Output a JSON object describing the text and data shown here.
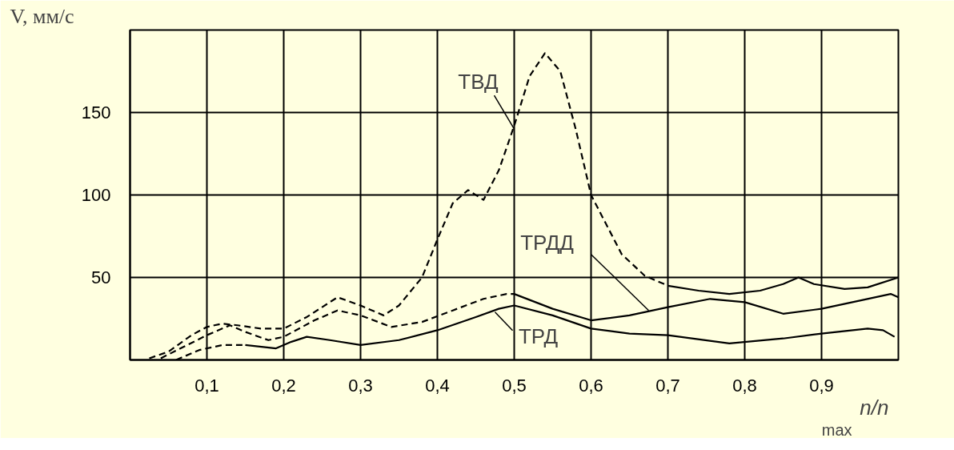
{
  "chart_data": {
    "type": "line",
    "xlabel": "n/n$_{max}$",
    "ylabel": "V, мм/с",
    "xlim": [
      0,
      1
    ],
    "ylim": [
      0,
      200
    ],
    "xticks": [
      {
        "value": 0.1,
        "label": "0,1"
      },
      {
        "value": 0.2,
        "label": "0,2"
      },
      {
        "value": 0.3,
        "label": "0,3"
      },
      {
        "value": 0.4,
        "label": "0,4"
      },
      {
        "value": 0.5,
        "label": "0,5"
      },
      {
        "value": 0.6,
        "label": "0,6"
      },
      {
        "value": 0.7,
        "label": "0,7"
      },
      {
        "value": 0.8,
        "label": "0,8"
      },
      {
        "value": 0.9,
        "label": "0,9"
      }
    ],
    "yticks": [
      50,
      100,
      150
    ],
    "grid": true,
    "marker": "none",
    "series": [
      {
        "color": "#000000",
        "line_style": "dashed",
        "x": [
          0.025,
          0.05,
          0.08,
          0.1,
          0.12,
          0.14,
          0.17,
          0.2,
          0.23,
          0.27,
          0.3,
          0.33,
          0.35,
          0.38,
          0.4,
          0.42,
          0.44,
          0.46,
          0.48,
          0.5,
          0.52,
          0.54,
          0.56,
          0.58,
          0.6,
          0.64,
          0.67,
          0.7
        ],
        "values": [
          1,
          5,
          15,
          20,
          22,
          21,
          19,
          19,
          26,
          38,
          33,
          27,
          33,
          50,
          73,
          95,
          103,
          97,
          115,
          142,
          172,
          186,
          175,
          140,
          100,
          64,
          51,
          45
        ]
      },
      {
        "color": "#000000",
        "line_style": "solid",
        "x": [
          0.7,
          0.74,
          0.78,
          0.82,
          0.85,
          0.87,
          0.89,
          0.93,
          0.96,
          1.0
        ],
        "values": [
          45,
          42,
          40,
          42,
          46,
          50,
          46,
          43,
          44,
          50
        ]
      },
      {
        "color": "#000000",
        "line_style": "dashed",
        "x": [
          0.04,
          0.07,
          0.1,
          0.13,
          0.15,
          0.18,
          0.2,
          0.24,
          0.27,
          0.3,
          0.34,
          0.38,
          0.42,
          0.46,
          0.49,
          0.5
        ],
        "values": [
          1,
          8,
          15,
          21,
          17,
          12,
          14,
          24,
          30,
          27,
          20,
          23,
          30,
          37,
          40,
          40
        ]
      },
      {
        "color": "#000000",
        "line_style": "solid",
        "x": [
          0.5,
          0.55,
          0.6,
          0.65,
          0.7,
          0.755,
          0.8,
          0.85,
          0.9,
          0.95,
          0.99,
          1.0
        ],
        "values": [
          40,
          31,
          24,
          27,
          32,
          37,
          35,
          28,
          31,
          36,
          40,
          38
        ]
      },
      {
        "color": "#000000",
        "line_style": "dashed",
        "x": [
          0.06,
          0.09,
          0.12,
          0.15
        ],
        "values": [
          0,
          6,
          9,
          9
        ]
      },
      {
        "color": "#000000",
        "line_style": "solid",
        "x": [
          0.15,
          0.19,
          0.21,
          0.23,
          0.26,
          0.3,
          0.35,
          0.4,
          0.45,
          0.48,
          0.5,
          0.55,
          0.6,
          0.65,
          0.7,
          0.78,
          0.85,
          0.9,
          0.96,
          0.98,
          0.995
        ],
        "values": [
          9,
          7,
          11,
          14,
          12,
          9,
          12,
          18,
          26,
          31,
          33,
          27,
          19,
          16,
          15,
          10,
          13,
          16,
          19,
          18,
          14
        ]
      }
    ],
    "annotations": [
      {
        "text": "ТВД",
        "x": 0.5,
        "y": 140
      },
      {
        "text": "ТРДД",
        "x": 0.675,
        "y": 30
      },
      {
        "text": "ТРД",
        "x": 0.475,
        "y": 29
      }
    ]
  }
}
